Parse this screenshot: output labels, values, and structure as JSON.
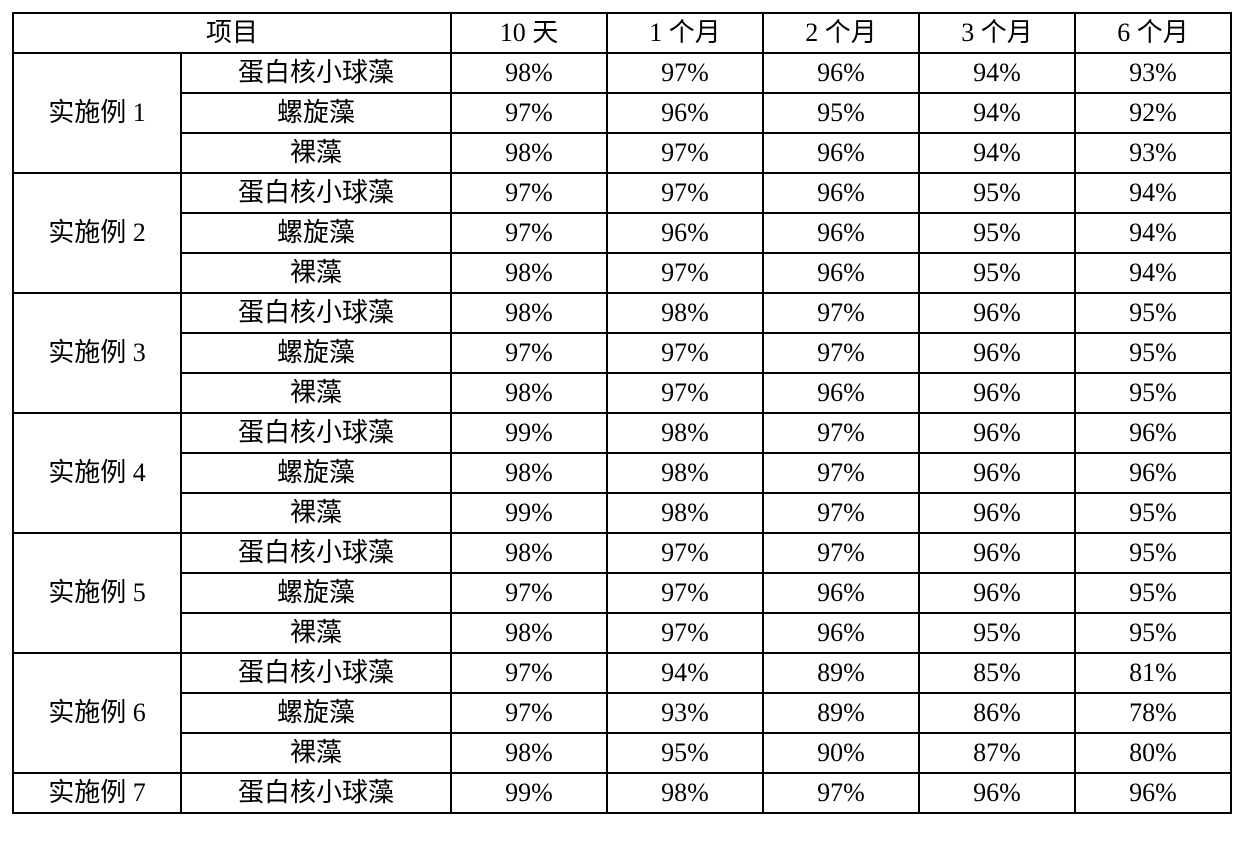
{
  "table": {
    "header": {
      "project": "项目",
      "periods": [
        "10 天",
        "1 个月",
        "2 个月",
        "3 个月",
        "6 个月"
      ]
    },
    "groups": [
      {
        "label": "实施例 1",
        "rows": [
          {
            "sub": "蛋白核小球藻",
            "vals": [
              "98%",
              "97%",
              "96%",
              "94%",
              "93%"
            ]
          },
          {
            "sub": "螺旋藻",
            "vals": [
              "97%",
              "96%",
              "95%",
              "94%",
              "92%"
            ]
          },
          {
            "sub": "裸藻",
            "vals": [
              "98%",
              "97%",
              "96%",
              "94%",
              "93%"
            ]
          }
        ]
      },
      {
        "label": "实施例 2",
        "rows": [
          {
            "sub": "蛋白核小球藻",
            "vals": [
              "97%",
              "97%",
              "96%",
              "95%",
              "94%"
            ]
          },
          {
            "sub": "螺旋藻",
            "vals": [
              "97%",
              "96%",
              "96%",
              "95%",
              "94%"
            ]
          },
          {
            "sub": "裸藻",
            "vals": [
              "98%",
              "97%",
              "96%",
              "95%",
              "94%"
            ]
          }
        ]
      },
      {
        "label": "实施例 3",
        "rows": [
          {
            "sub": "蛋白核小球藻",
            "vals": [
              "98%",
              "98%",
              "97%",
              "96%",
              "95%"
            ]
          },
          {
            "sub": "螺旋藻",
            "vals": [
              "97%",
              "97%",
              "97%",
              "96%",
              "95%"
            ]
          },
          {
            "sub": "裸藻",
            "vals": [
              "98%",
              "97%",
              "96%",
              "96%",
              "95%"
            ]
          }
        ]
      },
      {
        "label": "实施例 4",
        "rows": [
          {
            "sub": "蛋白核小球藻",
            "vals": [
              "99%",
              "98%",
              "97%",
              "96%",
              "96%"
            ]
          },
          {
            "sub": "螺旋藻",
            "vals": [
              "98%",
              "98%",
              "97%",
              "96%",
              "96%"
            ]
          },
          {
            "sub": "裸藻",
            "vals": [
              "99%",
              "98%",
              "97%",
              "96%",
              "95%"
            ]
          }
        ]
      },
      {
        "label": "实施例 5",
        "rows": [
          {
            "sub": "蛋白核小球藻",
            "vals": [
              "98%",
              "97%",
              "97%",
              "96%",
              "95%"
            ]
          },
          {
            "sub": "螺旋藻",
            "vals": [
              "97%",
              "97%",
              "96%",
              "96%",
              "95%"
            ]
          },
          {
            "sub": "裸藻",
            "vals": [
              "98%",
              "97%",
              "96%",
              "95%",
              "95%"
            ]
          }
        ]
      },
      {
        "label": "实施例 6",
        "rows": [
          {
            "sub": "蛋白核小球藻",
            "vals": [
              "97%",
              "94%",
              "89%",
              "85%",
              "81%"
            ]
          },
          {
            "sub": "螺旋藻",
            "vals": [
              "97%",
              "93%",
              "89%",
              "86%",
              "78%"
            ]
          },
          {
            "sub": "裸藻",
            "vals": [
              "98%",
              "95%",
              "90%",
              "87%",
              "80%"
            ]
          }
        ]
      },
      {
        "label": "实施例 7",
        "rows": [
          {
            "sub": "蛋白核小球藻",
            "vals": [
              "99%",
              "98%",
              "97%",
              "96%",
              "96%"
            ]
          }
        ]
      }
    ]
  }
}
